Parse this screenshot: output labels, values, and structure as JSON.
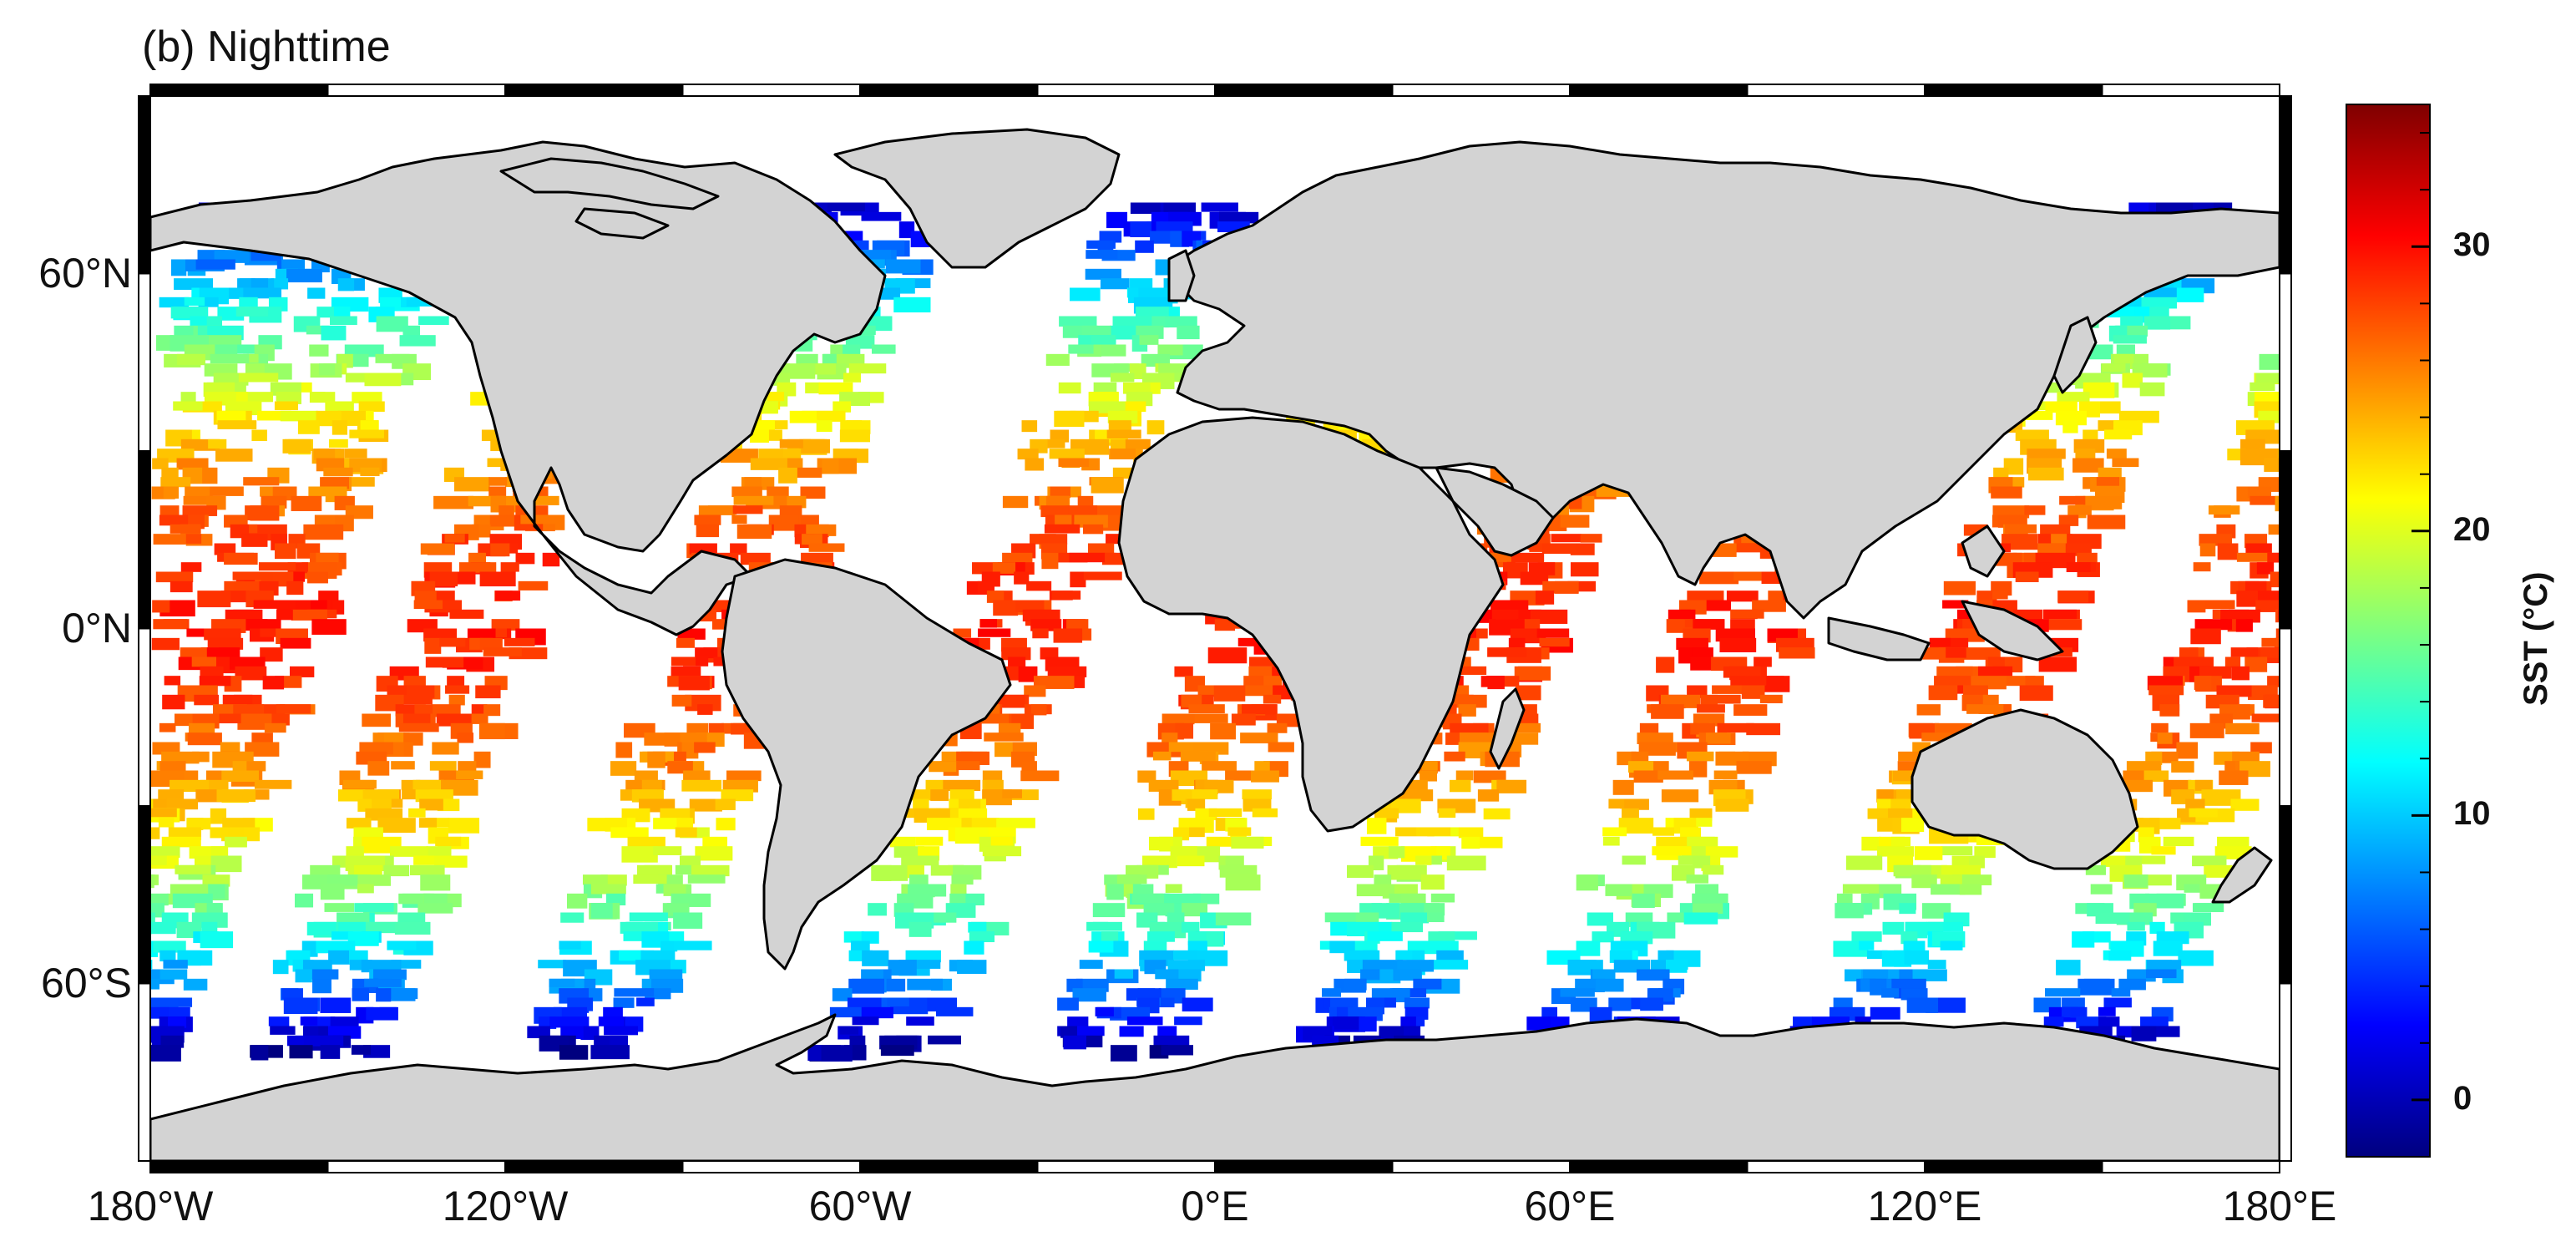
{
  "panel_title": "(b) Nighttime",
  "map": {
    "projection": "equirectangular",
    "lon_range": [
      -180,
      180
    ],
    "lat_range": [
      -90,
      90
    ],
    "land_color": "#d3d3d3",
    "coastline_color": "#000000",
    "frame_style": "alternating black/white border bars at 30° intervals",
    "lon_ticks": [
      {
        "label": "180°W",
        "value": -180
      },
      {
        "label": "120°W",
        "value": -120
      },
      {
        "label": "60°W",
        "value": -60
      },
      {
        "label": "0°E",
        "value": 0
      },
      {
        "label": "60°E",
        "value": 60
      },
      {
        "label": "120°E",
        "value": 120
      },
      {
        "label": "180°E",
        "value": 180
      }
    ],
    "lat_ticks": [
      {
        "label": "60°N",
        "value": 60
      },
      {
        "label": "0°N",
        "value": 0
      },
      {
        "label": "60°S",
        "value": -60
      }
    ],
    "data_field": "sea surface temperature (nighttime swaths)",
    "swath_pattern": "diagonal satellite swaths with white gaps between passes"
  },
  "colorbar": {
    "title": "SST (°C)",
    "vmin": -2,
    "vmax": 35,
    "colormap": "jet",
    "colors": [
      "#00007f",
      "#0000ff",
      "#007fff",
      "#00ffff",
      "#7fff7f",
      "#ffff00",
      "#ff7f00",
      "#ff0000",
      "#7f0000"
    ],
    "ticks": [
      {
        "label": "0",
        "value": 0
      },
      {
        "label": "10",
        "value": 10
      },
      {
        "label": "20",
        "value": 20
      },
      {
        "label": "30",
        "value": 30
      }
    ],
    "minor_tick_step": 2
  }
}
